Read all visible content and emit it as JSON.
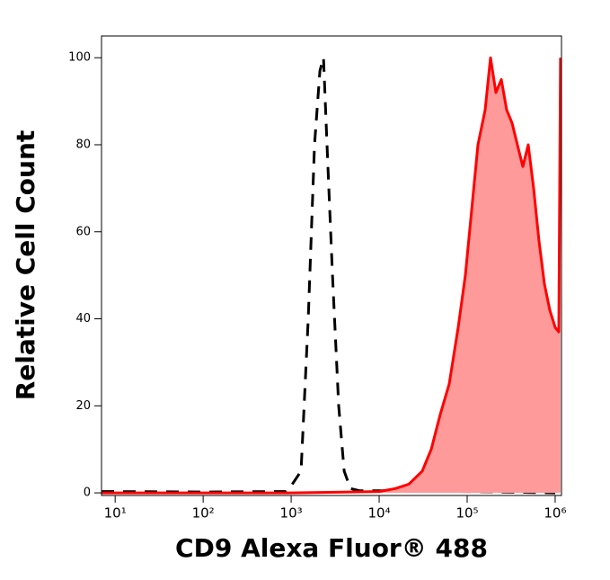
{
  "chart_data": {
    "type": "histogram-overlay",
    "x_label": "CD9 Alexa Fluor® 488",
    "y_label": "Relative Cell Count",
    "xscale": "log",
    "xlim": [
      7,
      1180000
    ],
    "xticks": [
      {
        "value": 10,
        "label": "10¹"
      },
      {
        "value": 100,
        "label": "10²"
      },
      {
        "value": 1000,
        "label": "10³"
      },
      {
        "value": 10000,
        "label": "10⁴"
      },
      {
        "value": 100000,
        "label": "10⁵"
      },
      {
        "value": 1000000,
        "label": "10⁶"
      }
    ],
    "ylim": [
      -0.6,
      105
    ],
    "yticks": [
      0,
      20,
      40,
      60,
      80,
      100
    ],
    "series": [
      {
        "color": "#000000",
        "dashed": true,
        "filled": false,
        "x": [
          7,
          100,
          869,
          955,
          1294,
          1563,
          1841,
          2121,
          2330,
          2557,
          2946,
          3472,
          4003,
          4714,
          5966,
          19300,
          100000,
          1000000
        ],
        "values": [
          0.3,
          0.2,
          0.3,
          1,
          5,
          40,
          80,
          97,
          100,
          80,
          50,
          20,
          5,
          1,
          0.5,
          0.5,
          0.3,
          0
        ]
      },
      {
        "color": "#ff0000",
        "fill": "#ff9a9a",
        "dashed": false,
        "filled": true,
        "x": [
          7,
          1000,
          10000,
          15280,
          21730,
          30900,
          39080,
          49430,
          62520,
          79070,
          95500,
          112500,
          132500,
          160000,
          184100,
          212300,
          244500,
          281300,
          323600,
          372400,
          429500,
          494300,
          568900,
          654600,
          755100,
          868900,
          1000000,
          1099000,
          1151000
        ],
        "values": [
          0,
          0,
          0.3,
          1,
          2,
          5,
          10,
          18,
          25,
          38,
          50,
          65,
          80,
          88,
          100,
          92,
          95,
          88,
          85,
          80,
          75,
          80,
          70,
          58,
          48,
          42,
          38,
          37,
          100
        ]
      }
    ]
  }
}
